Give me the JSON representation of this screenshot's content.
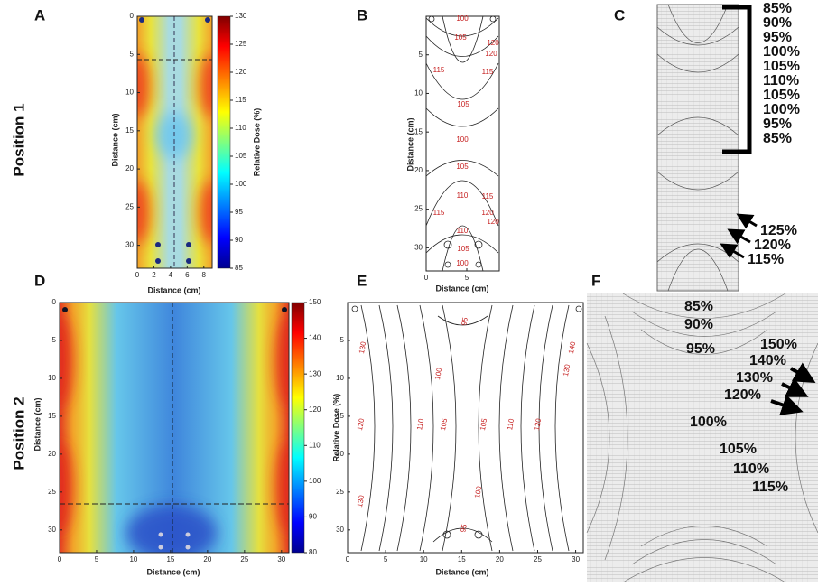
{
  "row_labels": [
    "Position 1",
    "Position 2"
  ],
  "panels": [
    {
      "label": "A",
      "x_label": "Distance (cm)",
      "y_label": "Distance (cm)",
      "xlim": [
        0,
        9
      ],
      "xticks": [
        0,
        2,
        4,
        6,
        8
      ],
      "ylim": [
        0,
        33
      ],
      "yticks": [
        0,
        5,
        10,
        15,
        20,
        25,
        30
      ],
      "colorbar": {
        "label": "Relative Dose (%)",
        "lim": [
          85,
          130
        ],
        "ticks": [
          85,
          90,
          95,
          100,
          105,
          110,
          115,
          120,
          125,
          130
        ]
      }
    },
    {
      "label": "B",
      "x_label": "Distance (cm)",
      "y_label": "Distance (cm)",
      "xlim": [
        0,
        9
      ],
      "xticks": [
        0,
        5
      ],
      "ylim": [
        0,
        33
      ],
      "yticks": [
        5,
        10,
        15,
        20,
        25,
        30
      ],
      "contour_labels": [
        "100",
        "105",
        "115",
        "120",
        "115",
        "120",
        "105",
        "100",
        "105",
        "110",
        "115",
        "120",
        "115",
        "120",
        "110",
        "105",
        "100"
      ]
    },
    {
      "label": "C",
      "film_labels": [
        "85%",
        "90%",
        "95%",
        "100%",
        "105%",
        "110%",
        "105%",
        "100%",
        "95%",
        "85%"
      ],
      "arrow_labels": [
        "125%",
        "120%",
        "115%"
      ]
    },
    {
      "label": "D",
      "x_label": "Distance (cm)",
      "y_label": "Distance (cm)",
      "xlim": [
        0,
        31
      ],
      "xticks": [
        0,
        5,
        10,
        15,
        20,
        25,
        30
      ],
      "ylim": [
        0,
        33
      ],
      "yticks": [
        0,
        5,
        10,
        15,
        20,
        25,
        30
      ],
      "colorbar": {
        "label": "Relative Dose (%)",
        "lim": [
          80,
          150
        ],
        "ticks": [
          80,
          90,
          100,
          110,
          120,
          130,
          140,
          150
        ]
      }
    },
    {
      "label": "E",
      "x_label": "Distance (cm)",
      "xlim": [
        0,
        31
      ],
      "xticks": [
        0,
        5,
        10,
        15,
        20,
        25,
        30
      ],
      "ylim": [
        0,
        33
      ],
      "yticks": [
        5,
        10,
        15,
        20,
        25,
        30
      ],
      "contour_labels": [
        "95",
        "130",
        "140",
        "100",
        "130",
        "120",
        "110",
        "105",
        "105",
        "110",
        "120",
        "100",
        "130",
        "95"
      ]
    },
    {
      "label": "F",
      "film_labels": [
        "85%",
        "90%",
        "95%",
        "150%",
        "140%",
        "130%",
        "120%",
        "100%",
        "105%",
        "110%",
        "115%"
      ]
    }
  ]
}
